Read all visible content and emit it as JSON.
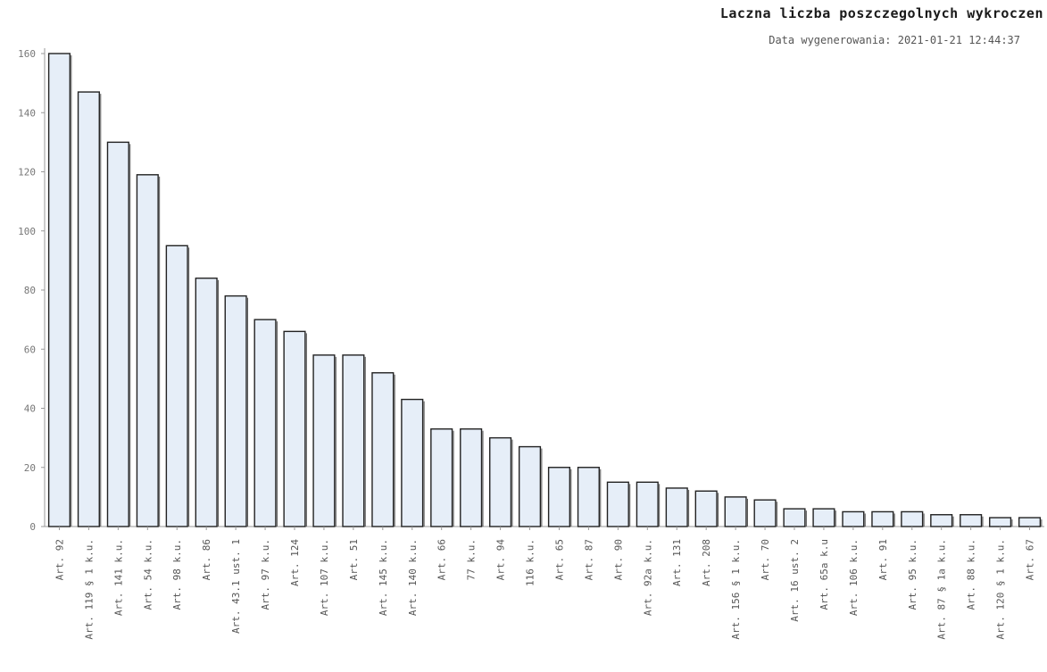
{
  "chart_data": {
    "type": "bar",
    "title": "Laczna liczba poszczegolnych wykroczen",
    "subtitle": "Data wygenerowania: 2021-01-21 12:44:37",
    "ylim": [
      0,
      160
    ],
    "yticks": [
      0,
      20,
      40,
      60,
      80,
      100,
      120,
      140,
      160
    ],
    "ytick_labels": [
      "0",
      "20",
      "40",
      "60",
      "80",
      "100",
      "120",
      "140",
      "160"
    ],
    "categories": [
      "Art. 92",
      "Art. 119 § 1 k.u.",
      "Art. 141 k.u.",
      "Art. 54 k.u.",
      "Art. 98 k.u.",
      "Art. 86",
      "Art. 43.1 ust. 1",
      "Art. 97 k.u.",
      "Art. 124",
      "Art. 107 k.u.",
      "Art. 51",
      "Art. 145 k.u.",
      "Art. 140 k.u.",
      "Art. 66",
      "77 k.u.",
      "Art. 94",
      "116 k.u.",
      "Art. 65",
      "Art. 87",
      "Art. 90",
      "Art. 92a k.u.",
      "Art. 131",
      "Art. 208",
      "Art. 156 § 1 k.u.",
      "Art. 70",
      "Art. 16 ust. 2",
      "Art. 65a k.u",
      "Art. 106 k.u.",
      "Art. 91",
      "Art. 95 k.u.",
      "Art. 87 § 1a k.u.",
      "Art. 88 k.u.",
      "Art. 120 § 1 k.u.",
      "Art. 67"
    ],
    "values": [
      160,
      147,
      130,
      119,
      95,
      84,
      78,
      70,
      66,
      58,
      58,
      52,
      43,
      33,
      33,
      30,
      27,
      20,
      20,
      15,
      15,
      13,
      12,
      10,
      9,
      6,
      6,
      5,
      5,
      5,
      4,
      4,
      3,
      3
    ],
    "grid": false,
    "legend": "none",
    "bar_fill": "#e6eef8",
    "bar_stroke": "#222222",
    "axis_color": "#999999"
  }
}
